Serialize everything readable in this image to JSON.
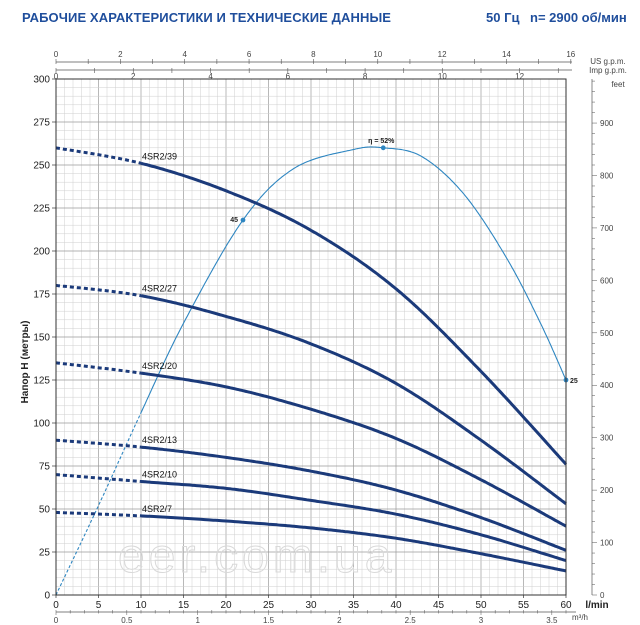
{
  "header": {
    "title": "РАБОЧИЕ ХАРАКТЕРИСТИКИ И ТЕХНИЧЕСКИЕ ДАННЫЕ",
    "frequency": "50 Гц",
    "speed": "n= 2900 об/мин"
  },
  "watermark": "eer.com.ua",
  "chart_data": {
    "type": "line",
    "ylabel": "Напор H (метры)",
    "ylim": [
      0,
      300
    ],
    "y_ticks": [
      0,
      25,
      50,
      75,
      100,
      125,
      150,
      175,
      200,
      225,
      250,
      275,
      300
    ],
    "y_right": {
      "unit": "feet",
      "range": [
        0,
        984
      ],
      "ticks": [
        0,
        100,
        200,
        300,
        400,
        500,
        600,
        700,
        800,
        900
      ]
    },
    "x_bottom_lmin": {
      "unit": "l/min",
      "range": [
        0,
        60
      ],
      "ticks": [
        0,
        5,
        10,
        15,
        20,
        25,
        30,
        35,
        40,
        45,
        50,
        55,
        60
      ]
    },
    "x_bottom_m3h": {
      "unit": "m³/h",
      "range": [
        0,
        3.6
      ],
      "ticks": [
        "0",
        "0.5",
        "1",
        "1.5",
        "2",
        "2.5",
        "3",
        "3.5"
      ]
    },
    "x_top_usgpm": {
      "unit": "US g.p.m.",
      "range": [
        0,
        15.85
      ],
      "ticks": [
        0,
        2,
        4,
        6,
        8,
        10,
        12,
        14,
        16
      ]
    },
    "x_top_impgpm": {
      "unit": "Imp g.p.m.",
      "range": [
        0,
        13.2
      ],
      "ticks": [
        0,
        2,
        4,
        6,
        8,
        10,
        12
      ]
    },
    "series": [
      {
        "name": "4SR2/39",
        "x": [
          0,
          10,
          20,
          30,
          40,
          50,
          60
        ],
        "y": [
          260,
          251,
          235,
          212,
          178,
          130,
          76
        ]
      },
      {
        "name": "4SR2/27",
        "x": [
          0,
          10,
          20,
          30,
          40,
          50,
          60
        ],
        "y": [
          180,
          174,
          162,
          146,
          123,
          90,
          53
        ]
      },
      {
        "name": "4SR2/20",
        "x": [
          0,
          10,
          20,
          30,
          40,
          50,
          60
        ],
        "y": [
          135,
          129,
          121,
          108,
          91,
          67,
          40
        ]
      },
      {
        "name": "4SR2/13",
        "x": [
          0,
          10,
          20,
          30,
          40,
          50,
          60
        ],
        "y": [
          90,
          86,
          80,
          72,
          61,
          45,
          26
        ]
      },
      {
        "name": "4SR2/10",
        "x": [
          0,
          10,
          20,
          30,
          40,
          50,
          60
        ],
        "y": [
          70,
          66,
          62,
          55,
          47,
          35,
          20
        ]
      },
      {
        "name": "4SR2/7",
        "x": [
          0,
          10,
          20,
          30,
          40,
          50,
          60
        ],
        "y": [
          48,
          46,
          43,
          39,
          33,
          24,
          14
        ]
      }
    ],
    "efficiency": {
      "label": "η = 52%",
      "x": [
        0,
        5,
        10,
        15,
        22,
        28,
        35,
        38.5,
        43,
        48,
        53,
        57,
        60
      ],
      "y": [
        0,
        52,
        106,
        158,
        218,
        248,
        259,
        260,
        255,
        233,
        196,
        158,
        125
      ],
      "marked_points": [
        {
          "x": 22,
          "y": 218,
          "label": "45"
        },
        {
          "x": 38.5,
          "y": 260,
          "label": ""
        },
        {
          "x": 60,
          "y": 125,
          "label": "25"
        }
      ]
    },
    "dashed_until_x": 10,
    "grid": true
  }
}
